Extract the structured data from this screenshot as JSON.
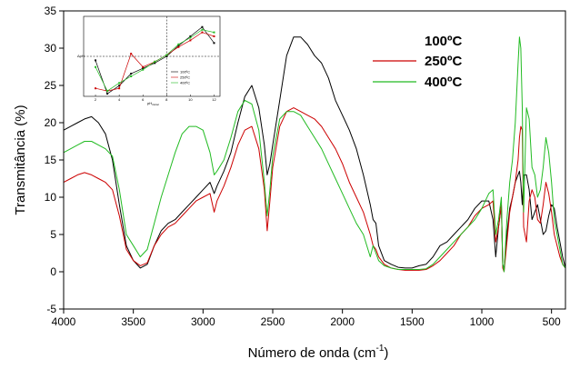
{
  "chart_data": {
    "type": "line",
    "xlabel": "Número de onda (cm",
    "xlabel_sup": "-1",
    "xlabel_close": ")",
    "ylabel": "Transmitância (%)",
    "xlim": [
      4000,
      400
    ],
    "ylim": [
      -5,
      35
    ],
    "xticks": [
      4000,
      3500,
      3000,
      2500,
      2000,
      1500,
      1000,
      500
    ],
    "yticks": [
      -5,
      0,
      5,
      10,
      15,
      20,
      25,
      30,
      35
    ],
    "legend_position": "top-right",
    "series": [
      {
        "name": "100ºC",
        "color": "#000000",
        "x": [
          4000,
          3950,
          3900,
          3850,
          3800,
          3750,
          3700,
          3650,
          3600,
          3550,
          3500,
          3450,
          3400,
          3350,
          3300,
          3250,
          3200,
          3150,
          3100,
          3050,
          3000,
          2950,
          2920,
          2900,
          2850,
          2800,
          2750,
          2700,
          2650,
          2600,
          2560,
          2540,
          2520,
          2500,
          2450,
          2400,
          2350,
          2300,
          2250,
          2200,
          2150,
          2100,
          2050,
          2000,
          1950,
          1900,
          1850,
          1800,
          1780,
          1760,
          1740,
          1700,
          1650,
          1600,
          1550,
          1500,
          1450,
          1400,
          1350,
          1300,
          1250,
          1200,
          1150,
          1100,
          1050,
          1000,
          950,
          920,
          900,
          880,
          860,
          850,
          840,
          820,
          800,
          780,
          760,
          740,
          730,
          720,
          710,
          700,
          680,
          660,
          640,
          620,
          600,
          580,
          560,
          540,
          520,
          500,
          480,
          460,
          440,
          420,
          400
        ],
        "y": [
          19.0,
          19.5,
          20.0,
          20.5,
          20.8,
          20.0,
          18.5,
          15.0,
          9.0,
          3.5,
          1.5,
          0.5,
          1.0,
          3.5,
          5.5,
          6.5,
          7.0,
          8.0,
          9.0,
          10.0,
          11.0,
          12.0,
          10.5,
          11.5,
          13.5,
          16.0,
          20.0,
          23.5,
          25.0,
          22.0,
          17.0,
          13.0,
          14.5,
          17.0,
          23.0,
          29.0,
          31.5,
          31.5,
          30.5,
          29.0,
          28.0,
          26.0,
          23.0,
          21.0,
          19.0,
          16.5,
          13.0,
          9.0,
          7.0,
          6.5,
          3.5,
          1.5,
          1.0,
          0.6,
          0.5,
          0.5,
          0.8,
          1.0,
          2.0,
          3.5,
          4.0,
          5.0,
          6.0,
          7.0,
          8.5,
          9.5,
          9.5,
          7.0,
          2.0,
          6.0,
          9.0,
          1.0,
          0.3,
          5.0,
          8.5,
          10.0,
          12.0,
          13.0,
          13.5,
          12.0,
          9.0,
          13.0,
          13.0,
          11.0,
          7.0,
          8.0,
          9.0,
          7.0,
          5.0,
          5.5,
          7.5,
          9.0,
          8.5,
          6.0,
          4.0,
          2.0,
          0.5
        ]
      },
      {
        "name": "250ºC",
        "color": "#cc0000",
        "x": [
          4000,
          3950,
          3900,
          3850,
          3800,
          3750,
          3700,
          3650,
          3600,
          3550,
          3500,
          3450,
          3400,
          3350,
          3300,
          3250,
          3200,
          3150,
          3100,
          3050,
          3000,
          2950,
          2920,
          2900,
          2850,
          2800,
          2750,
          2700,
          2650,
          2600,
          2560,
          2540,
          2520,
          2500,
          2450,
          2400,
          2350,
          2300,
          2250,
          2200,
          2150,
          2100,
          2050,
          2000,
          1950,
          1900,
          1850,
          1800,
          1780,
          1760,
          1740,
          1700,
          1650,
          1600,
          1550,
          1500,
          1450,
          1400,
          1350,
          1300,
          1250,
          1200,
          1150,
          1100,
          1050,
          1000,
          950,
          920,
          900,
          880,
          860,
          850,
          840,
          820,
          800,
          780,
          760,
          740,
          730,
          720,
          710,
          700,
          680,
          660,
          640,
          620,
          600,
          580,
          560,
          540,
          520,
          500,
          480,
          460,
          440,
          420,
          400
        ],
        "y": [
          12.0,
          12.5,
          13.0,
          13.3,
          13.0,
          12.5,
          12.0,
          11.0,
          7.5,
          3.0,
          1.5,
          0.8,
          1.2,
          3.5,
          5.0,
          6.0,
          6.5,
          7.5,
          8.5,
          9.5,
          10.0,
          10.5,
          8.0,
          9.5,
          11.5,
          14.0,
          17.0,
          19.0,
          19.5,
          16.5,
          11.0,
          5.5,
          9.5,
          14.0,
          19.5,
          21.5,
          22.0,
          21.5,
          21.0,
          20.5,
          19.5,
          18.0,
          16.5,
          14.5,
          12.0,
          10.0,
          8.0,
          5.0,
          3.5,
          3.0,
          2.0,
          1.0,
          0.5,
          0.3,
          0.2,
          0.2,
          0.2,
          0.3,
          0.8,
          1.5,
          2.5,
          3.5,
          5.0,
          6.0,
          7.5,
          8.5,
          9.0,
          9.5,
          4.0,
          6.0,
          9.0,
          0.5,
          0.0,
          4.0,
          8.0,
          10.0,
          12.0,
          15.0,
          18.0,
          19.5,
          19.0,
          6.0,
          4.0,
          9.5,
          11.0,
          10.0,
          7.0,
          6.5,
          9.0,
          12.0,
          10.5,
          8.0,
          5.0,
          3.5,
          2.0,
          1.0,
          0.5
        ]
      },
      {
        "name": "400ºC",
        "color": "#22bb22",
        "x": [
          4000,
          3950,
          3900,
          3850,
          3800,
          3750,
          3700,
          3650,
          3600,
          3550,
          3500,
          3450,
          3400,
          3350,
          3300,
          3250,
          3200,
          3150,
          3100,
          3050,
          3000,
          2950,
          2920,
          2900,
          2850,
          2800,
          2750,
          2700,
          2650,
          2600,
          2560,
          2540,
          2520,
          2500,
          2450,
          2400,
          2350,
          2300,
          2250,
          2200,
          2150,
          2100,
          2050,
          2000,
          1950,
          1900,
          1850,
          1800,
          1780,
          1760,
          1740,
          1700,
          1650,
          1600,
          1550,
          1500,
          1450,
          1400,
          1350,
          1300,
          1250,
          1200,
          1150,
          1100,
          1050,
          1000,
          950,
          920,
          900,
          880,
          860,
          850,
          840,
          820,
          800,
          780,
          760,
          740,
          730,
          720,
          710,
          700,
          680,
          660,
          640,
          620,
          600,
          580,
          560,
          540,
          520,
          500,
          480,
          460,
          440,
          420,
          400
        ],
        "y": [
          16.0,
          16.5,
          17.0,
          17.5,
          17.5,
          17.0,
          16.5,
          15.5,
          11.0,
          5.0,
          3.5,
          2.0,
          3.0,
          6.5,
          10.0,
          13.0,
          16.0,
          18.5,
          19.5,
          19.5,
          19.0,
          16.0,
          13.0,
          13.5,
          15.0,
          18.0,
          21.5,
          23.0,
          22.5,
          19.0,
          12.0,
          7.5,
          11.0,
          15.5,
          20.5,
          21.5,
          21.5,
          21.0,
          19.5,
          18.0,
          16.5,
          14.5,
          12.5,
          10.5,
          8.5,
          6.5,
          5.0,
          2.0,
          3.5,
          2.5,
          1.5,
          0.8,
          0.5,
          0.3,
          0.3,
          0.3,
          0.3,
          0.4,
          1.0,
          2.0,
          3.0,
          4.0,
          5.0,
          6.0,
          7.0,
          8.5,
          10.5,
          11.0,
          5.0,
          7.0,
          10.0,
          1.0,
          0.0,
          7.0,
          12.0,
          15.0,
          20.0,
          28.0,
          31.5,
          30.0,
          22.0,
          8.0,
          22.0,
          20.5,
          14.0,
          13.0,
          10.0,
          11.0,
          14.0,
          18.0,
          16.0,
          12.0,
          7.0,
          5.0,
          3.0,
          1.0,
          0.5
        ]
      }
    ],
    "inset": {
      "xlabel": "pH",
      "xlabel_sub": "inicial",
      "ylabel": "ΔpH",
      "xlim": [
        1,
        12.5
      ],
      "ylim": [
        -3,
        3
      ],
      "xticks": [
        2,
        4,
        6,
        8,
        10,
        12
      ],
      "legend_entries": [
        "100ºC",
        "250ºC",
        "400ºC"
      ],
      "vline_x": 8,
      "hline_y": 0,
      "series": [
        {
          "name": "100ºC",
          "color": "#000000",
          "x": [
            2,
            3,
            4,
            5,
            6,
            7,
            8,
            9,
            10,
            11,
            12
          ],
          "y": [
            -0.3,
            -2.8,
            -2.2,
            -1.3,
            -0.9,
            -0.5,
            0.0,
            0.8,
            1.5,
            2.2,
            1.0
          ]
        },
        {
          "name": "250ºC",
          "color": "#cc0000",
          "x": [
            2,
            3,
            4,
            5,
            6,
            7,
            8,
            9,
            10,
            11,
            12
          ],
          "y": [
            -2.4,
            -2.6,
            -2.4,
            0.2,
            -0.8,
            -0.4,
            0.1,
            0.7,
            1.2,
            1.8,
            1.5
          ]
        },
        {
          "name": "400ºC",
          "color": "#22bb22",
          "x": [
            2,
            3,
            4,
            5,
            6,
            7,
            8,
            9,
            10,
            11,
            12
          ],
          "y": [
            -0.8,
            -2.6,
            -2.0,
            -1.5,
            -1.0,
            -0.4,
            0.1,
            0.9,
            1.4,
            2.0,
            1.8
          ]
        }
      ]
    }
  }
}
